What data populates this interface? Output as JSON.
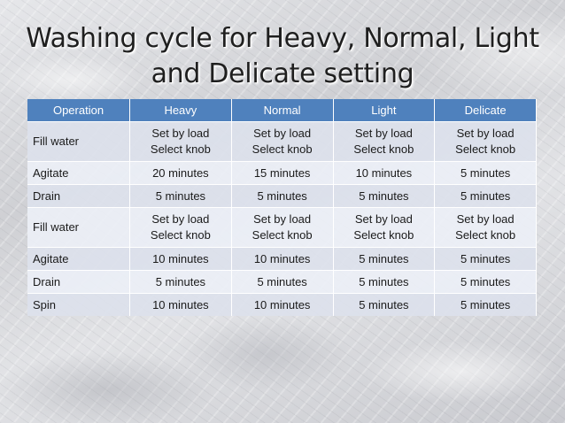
{
  "title": {
    "line1": "Washing cycle for Heavy, Normal, Light",
    "line2": "and Delicate setting"
  },
  "table": {
    "headers": [
      "Operation",
      "Heavy",
      "Normal",
      "Light",
      "Delicate"
    ],
    "rows": [
      {
        "operation": "Fill water",
        "heavy": [
          "Set by load",
          "Select knob"
        ],
        "normal": [
          "Set by load",
          "Select knob"
        ],
        "light": [
          "Set by load",
          "Select knob"
        ],
        "delicate": [
          "Set by load",
          "Select knob"
        ]
      },
      {
        "operation": "Agitate",
        "heavy": [
          "20 minutes"
        ],
        "normal": [
          "15 minutes"
        ],
        "light": [
          "10 minutes"
        ],
        "delicate": [
          "5 minutes"
        ]
      },
      {
        "operation": "Drain",
        "heavy": [
          "5 minutes"
        ],
        "normal": [
          "5 minutes"
        ],
        "light": [
          "5 minutes"
        ],
        "delicate": [
          "5 minutes"
        ]
      },
      {
        "operation": "Fill water",
        "heavy": [
          "Set by load",
          "Select knob"
        ],
        "normal": [
          "Set by load",
          "Select knob"
        ],
        "light": [
          "Set by load",
          "Select knob"
        ],
        "delicate": [
          "Set by load",
          "Select knob"
        ]
      },
      {
        "operation": "Agitate",
        "heavy": [
          "10 minutes"
        ],
        "normal": [
          "10 minutes"
        ],
        "light": [
          "5 minutes"
        ],
        "delicate": [
          "5 minutes"
        ]
      },
      {
        "operation": "Drain",
        "heavy": [
          "5 minutes"
        ],
        "normal": [
          "5 minutes"
        ],
        "light": [
          "5 minutes"
        ],
        "delicate": [
          "5 minutes"
        ]
      },
      {
        "operation": "Spin",
        "heavy": [
          "10 minutes"
        ],
        "normal": [
          "10 minutes"
        ],
        "light": [
          "5 minutes"
        ],
        "delicate": [
          "5 minutes"
        ]
      }
    ]
  },
  "colors": {
    "header_bg": "#4f81bd",
    "header_text": "#ffffff",
    "row_dark": "#dce1ec",
    "row_light": "#eceff6"
  }
}
